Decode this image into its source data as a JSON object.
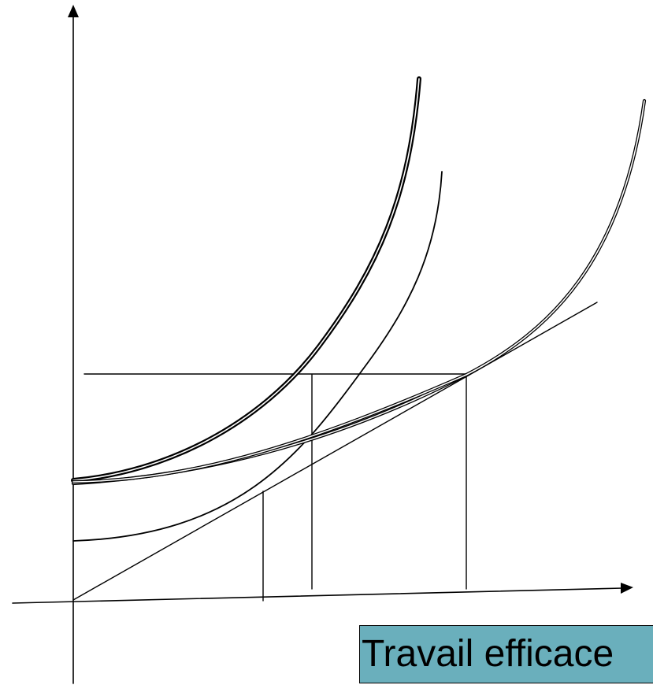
{
  "diagram": {
    "x_axis_label": "Travail efficace",
    "colors": {
      "line": "#000000",
      "label_box_fill": "#6aafbc",
      "background": "#ffffff"
    }
  }
}
